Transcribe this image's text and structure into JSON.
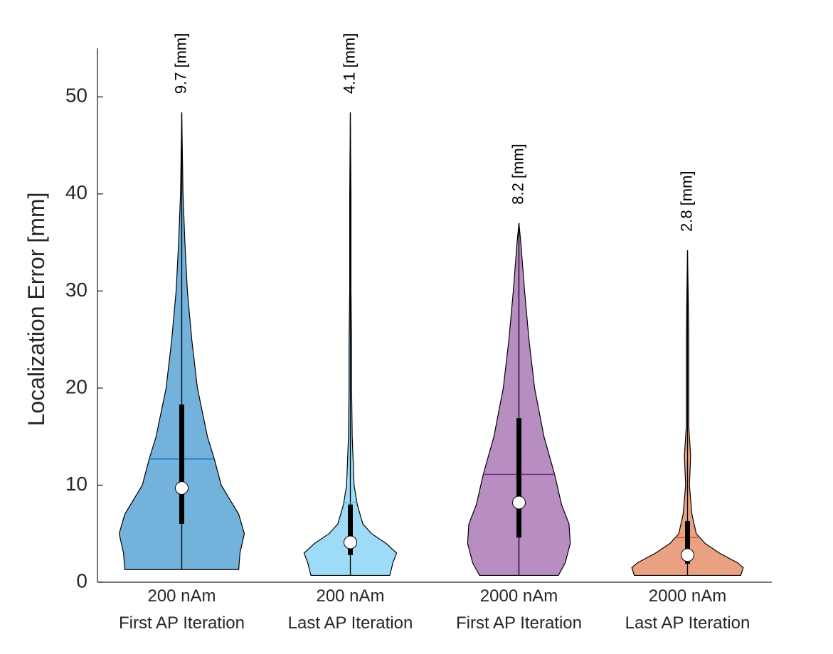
{
  "chart_data": {
    "type": "violin",
    "ylabel": "Localization Error [mm]",
    "ylim": [
      0,
      55
    ],
    "yticks": [
      0,
      10,
      20,
      30,
      40,
      50
    ],
    "grid": false,
    "categories": [
      [
        "200 nAm",
        "First AP Iteration"
      ],
      [
        "200 nAm",
        "Last AP Iteration"
      ],
      [
        "2000 nAm",
        "First AP Iteration"
      ],
      [
        "2000 nAm",
        "Last AP Iteration"
      ]
    ],
    "series": [
      {
        "color": "#0072BD",
        "median": 9.7,
        "median_label": "9.7 [mm]",
        "q1": 6.0,
        "q3": 18.3,
        "mean": 12.7,
        "min": 1.3,
        "max": 48.4,
        "profile_y": [
          1.3,
          3,
          5,
          7,
          10,
          12.7,
          15,
          20,
          25,
          30,
          35,
          40,
          48.4
        ],
        "density": [
          0.91,
          0.93,
          1,
          0.91,
          0.63,
          0.52,
          0.41,
          0.25,
          0.16,
          0.09,
          0.05,
          0.02,
          0
        ]
      },
      {
        "color": "#4DBEEE",
        "median": 4.1,
        "median_label": "4.1 [mm]",
        "q1": 2.8,
        "q3": 8.0,
        "mean": 8.2,
        "min": 0.7,
        "max": 48.4,
        "profile_y": [
          0.7,
          2,
          3,
          4,
          5,
          6,
          8,
          10,
          15,
          20,
          25,
          30,
          40,
          48.4
        ],
        "density": [
          0.63,
          0.68,
          0.74,
          0.57,
          0.34,
          0.2,
          0.11,
          0.06,
          0.03,
          0.02,
          0.02,
          0.01,
          0.01,
          0
        ]
      },
      {
        "color": "#7E2F8E",
        "median": 8.2,
        "median_label": "8.2 [mm]",
        "q1": 4.6,
        "q3": 16.9,
        "mean": 11.1,
        "min": 0.7,
        "max": 37.0,
        "profile_y": [
          0.7,
          2,
          4,
          6,
          8,
          11.1,
          15,
          20,
          25,
          30,
          35,
          37.0
        ],
        "density": [
          0.63,
          0.74,
          0.82,
          0.8,
          0.68,
          0.57,
          0.4,
          0.25,
          0.16,
          0.09,
          0.03,
          0
        ]
      },
      {
        "color": "#D95319",
        "median": 2.8,
        "median_label": "2.8 [mm]",
        "q1": 1.9,
        "q3": 6.3,
        "mean": 4.6,
        "min": 0.7,
        "max": 34.2,
        "profile_y": [
          0.7,
          1.5,
          2,
          3,
          4,
          5,
          7,
          10,
          13,
          16,
          20,
          25,
          30,
          34.2
        ],
        "density": [
          0.85,
          0.89,
          0.8,
          0.51,
          0.28,
          0.14,
          0.07,
          0.03,
          0.05,
          0.02,
          0.02,
          0.02,
          0.01,
          0
        ]
      }
    ]
  }
}
